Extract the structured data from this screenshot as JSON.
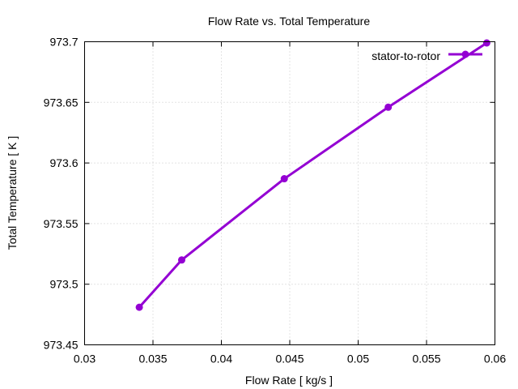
{
  "chart_data": {
    "type": "line",
    "title": "Flow Rate vs. Total Temperature",
    "xlabel": "Flow Rate [ kg/s ]",
    "ylabel": "Total Temperature [ K ]",
    "xlim": [
      0.03,
      0.06
    ],
    "ylim": [
      973.45,
      973.7
    ],
    "xticks": [
      "0.03",
      "0.035",
      "0.04",
      "0.045",
      "0.05",
      "0.055",
      "0.06"
    ],
    "yticks": [
      "973.45",
      "973.5",
      "973.55",
      "973.6",
      "973.65",
      "973.7"
    ],
    "grid": true,
    "legend_position": "top-right",
    "series": [
      {
        "name": "stator-to-rotor",
        "color": "#9400d3",
        "x": [
          0.034,
          0.0371,
          0.0446,
          0.0522,
          0.0594
        ],
        "y": [
          973.481,
          973.52,
          973.587,
          973.646,
          973.699
        ]
      }
    ]
  }
}
